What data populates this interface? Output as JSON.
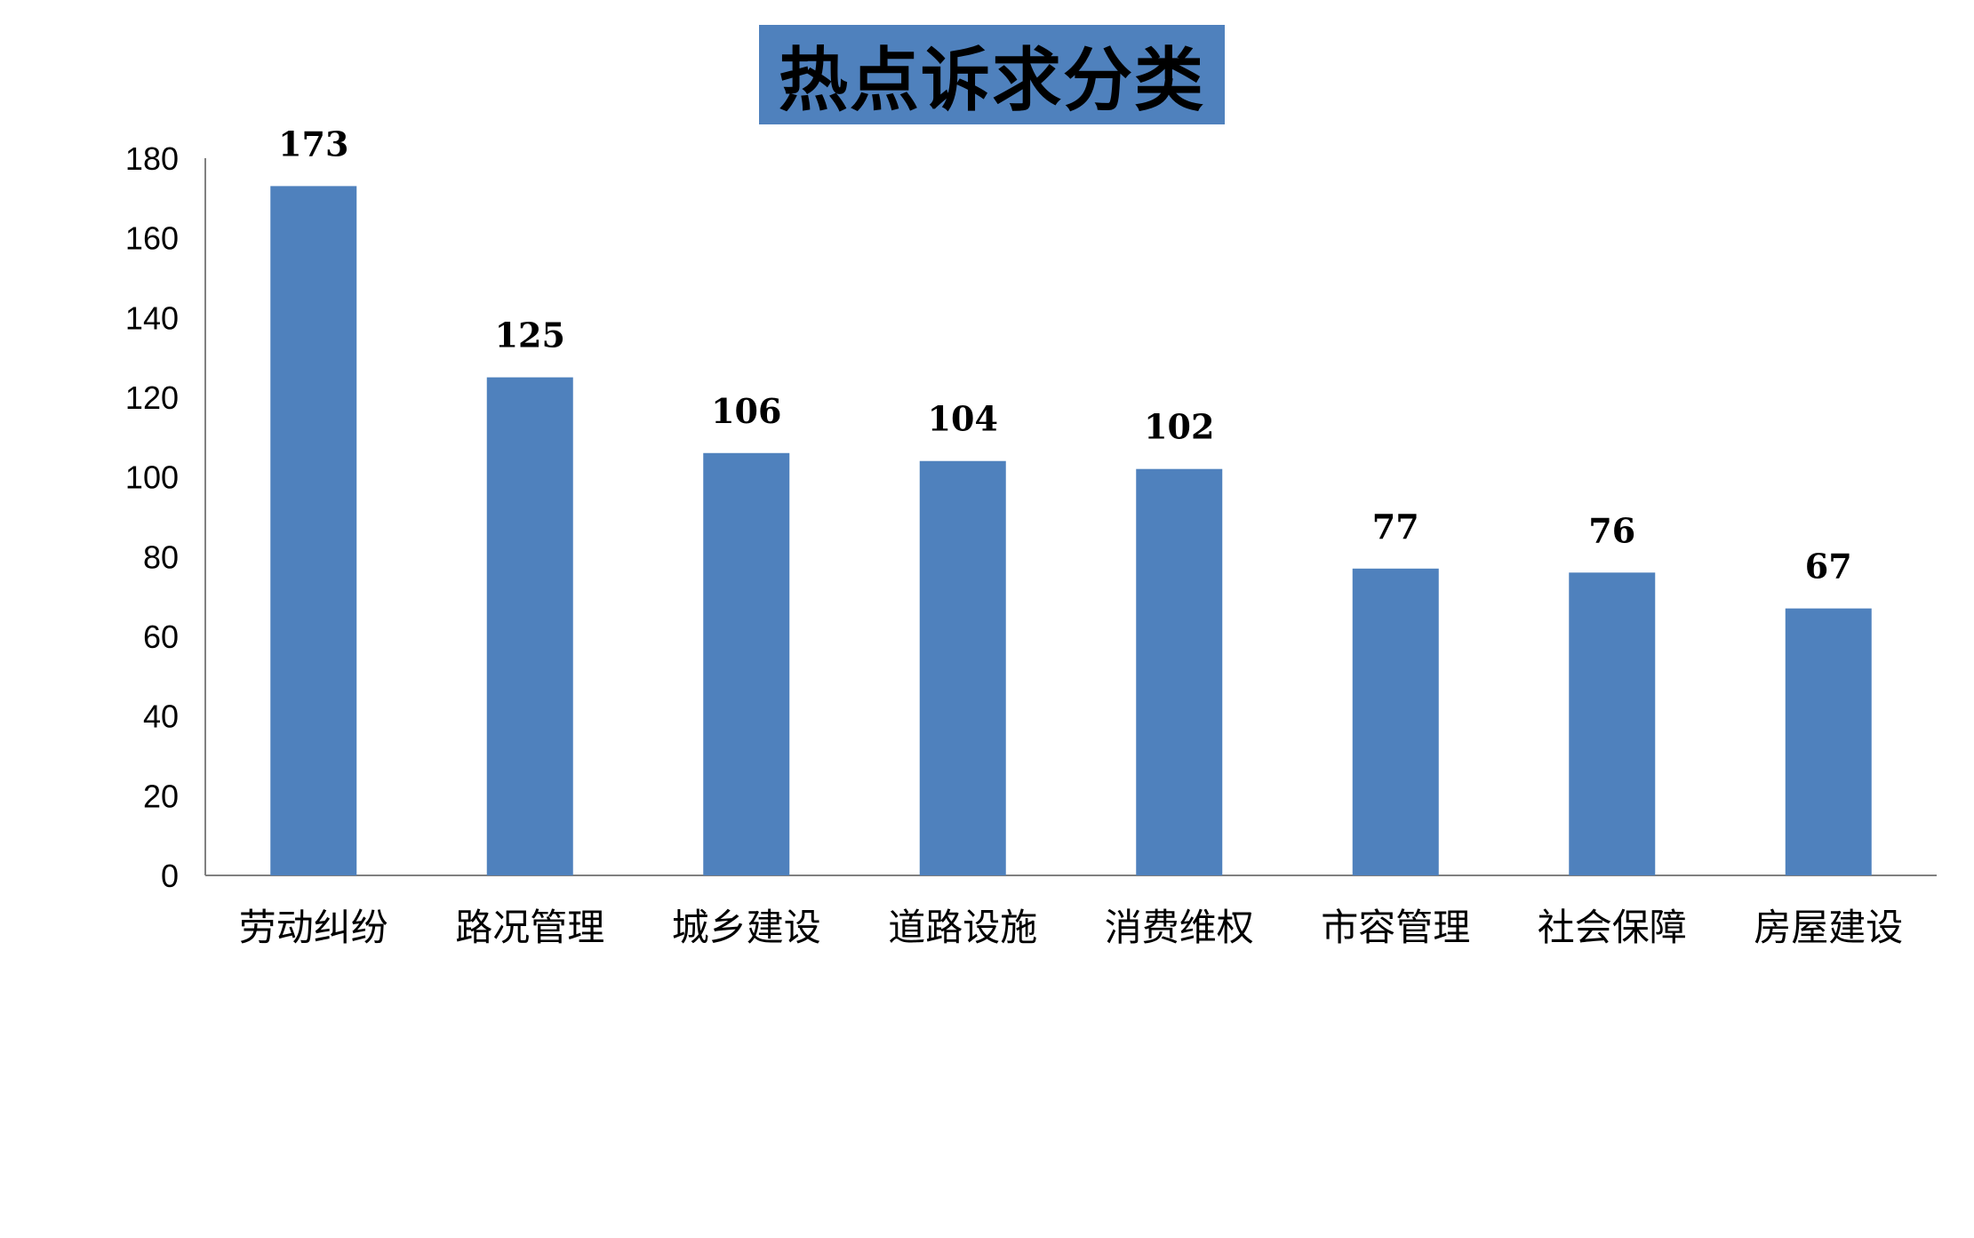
{
  "chart_data": {
    "type": "bar",
    "title": "热点诉求分类",
    "categories": [
      "劳动纠纷",
      "路况管理",
      "城乡建设",
      "道路设施",
      "消费维权",
      "市容管理",
      "社会保障",
      "房屋建设"
    ],
    "values": [
      173,
      125,
      106,
      104,
      102,
      77,
      76,
      67
    ],
    "ylim": [
      0,
      180
    ],
    "yticks": [
      0,
      20,
      40,
      60,
      80,
      100,
      120,
      140,
      160,
      180
    ],
    "grid": false,
    "legend": "none",
    "data_labels": true,
    "colors": {
      "bar": "#4F81BD",
      "title_background": "#4F81BD",
      "axis": "#808080"
    }
  }
}
